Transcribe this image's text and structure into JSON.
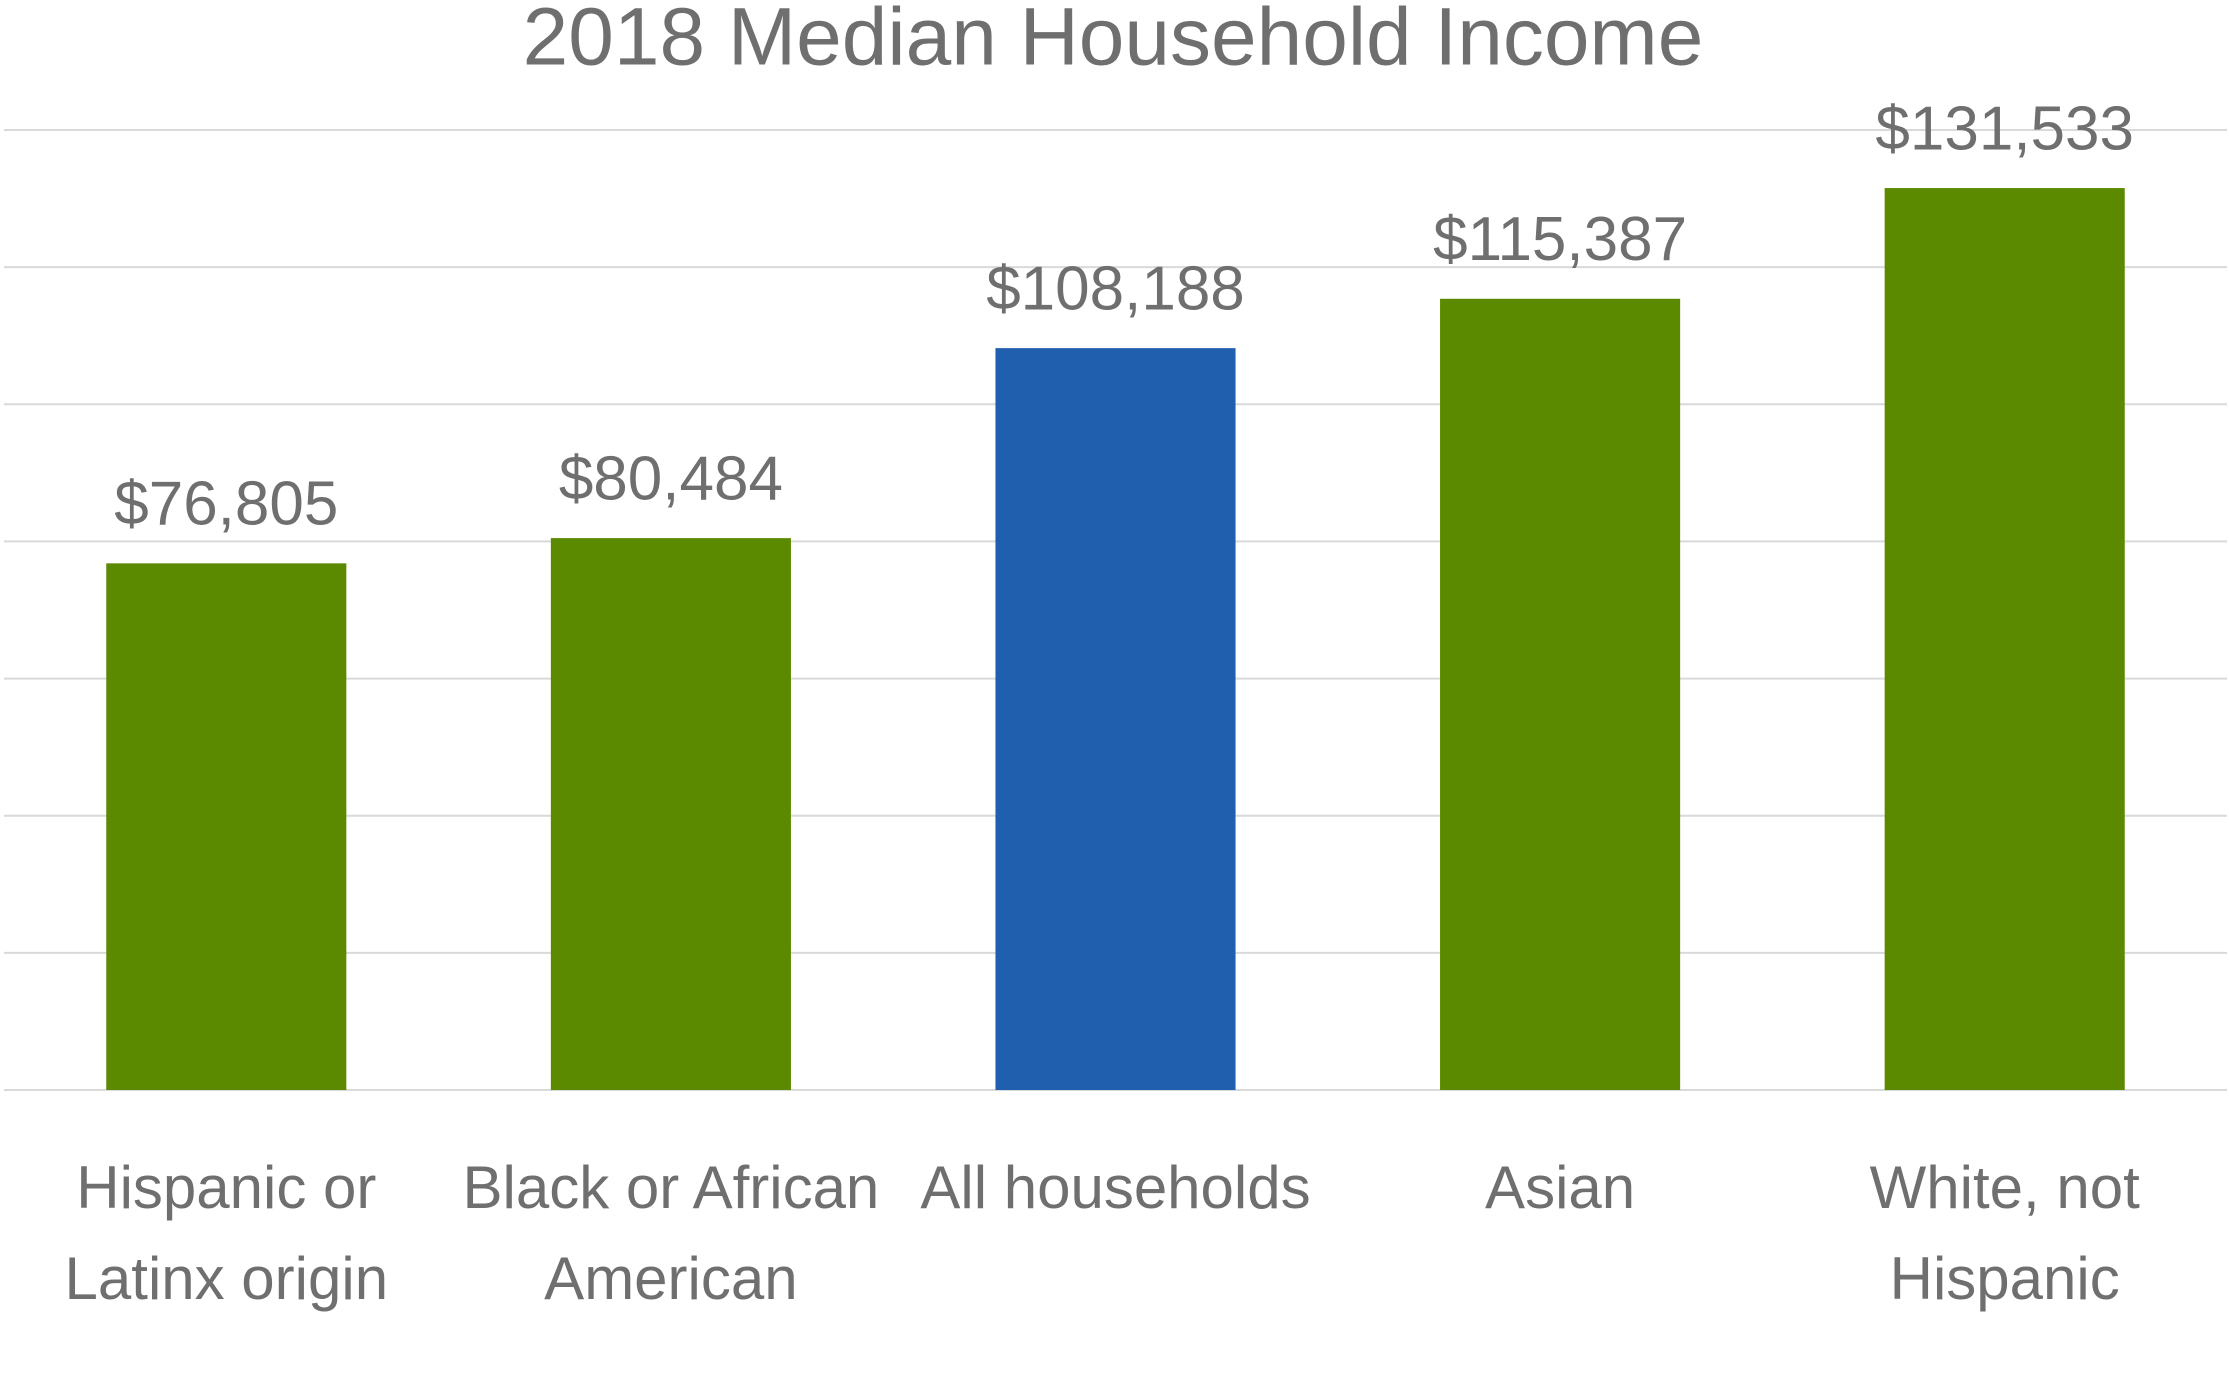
{
  "chart_data": {
    "type": "bar",
    "title": "2018 Median Household Income",
    "categories": [
      "Hispanic or Latinx origin",
      "Black or African American",
      "All households",
      "Asian",
      "White, not Hispanic"
    ],
    "values": [
      76805,
      80484,
      108188,
      115387,
      131533
    ],
    "value_labels": [
      "$76,805",
      "$80,484",
      "$108,188",
      "$115,387",
      "$131,533"
    ],
    "colors": [
      "#5b8a00",
      "#5b8a00",
      "#1f5fad",
      "#5b8a00",
      "#5b8a00"
    ],
    "ylim": [
      0,
      140000
    ],
    "yticks": [
      0,
      20000,
      40000,
      60000,
      80000,
      100000,
      120000,
      140000
    ],
    "grid": true
  }
}
